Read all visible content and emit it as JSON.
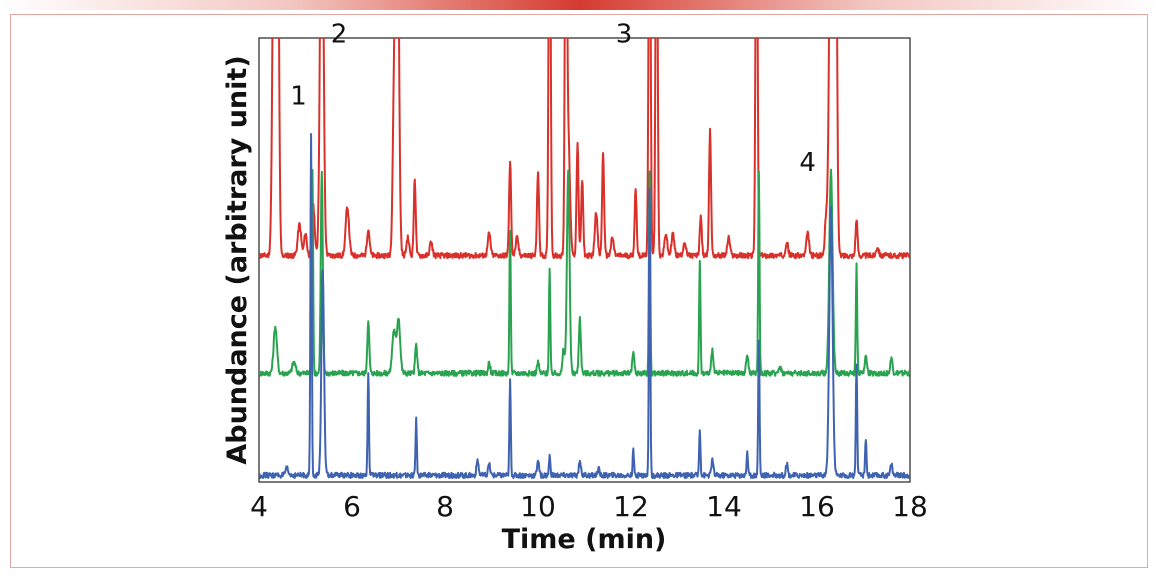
{
  "chart_data": {
    "type": "line",
    "title": "",
    "xlabel": "Time (min)",
    "ylabel": "Abundance (arbitrary unit)",
    "xlim": [
      4,
      18
    ],
    "xticks": [
      "4",
      "6",
      "8",
      "10",
      "12",
      "14",
      "16",
      "18"
    ],
    "ylim": [
      0,
      100
    ],
    "grid": false,
    "legend": "none",
    "baseline_noise": 0.6,
    "series": [
      {
        "color": "#d9302a",
        "baseline": 51,
        "peaks": [
          [
            4.33,
            150,
            0.05
          ],
          [
            4.4,
            140,
            0.04
          ],
          [
            4.87,
            58,
            0.05
          ],
          [
            5.0,
            56,
            0.04
          ],
          [
            5.17,
            62,
            0.04
          ],
          [
            5.35,
            150,
            0.05
          ],
          [
            5.9,
            62,
            0.05
          ],
          [
            6.35,
            57,
            0.04
          ],
          [
            6.9,
            80,
            0.04
          ],
          [
            6.97,
            150,
            0.05
          ],
          [
            7.2,
            55,
            0.04
          ],
          [
            7.35,
            68,
            0.03
          ],
          [
            7.7,
            54,
            0.04
          ],
          [
            8.95,
            56,
            0.04
          ],
          [
            9.4,
            72,
            0.03
          ],
          [
            9.55,
            55,
            0.04
          ],
          [
            10.0,
            70,
            0.03
          ],
          [
            10.25,
            150,
            0.03
          ],
          [
            10.6,
            150,
            0.03
          ],
          [
            10.65,
            78,
            0.05
          ],
          [
            10.85,
            76,
            0.03
          ],
          [
            10.95,
            68,
            0.03
          ],
          [
            11.25,
            61,
            0.04
          ],
          [
            11.4,
            74,
            0.03
          ],
          [
            11.6,
            55,
            0.04
          ],
          [
            12.1,
            66,
            0.03
          ],
          [
            12.4,
            150,
            0.03
          ],
          [
            12.55,
            150,
            0.03
          ],
          [
            12.75,
            56,
            0.04
          ],
          [
            12.9,
            56,
            0.04
          ],
          [
            13.15,
            54,
            0.04
          ],
          [
            13.5,
            60,
            0.03
          ],
          [
            13.7,
            79,
            0.03
          ],
          [
            14.1,
            55,
            0.04
          ],
          [
            14.7,
            150,
            0.03
          ],
          [
            15.35,
            54,
            0.04
          ],
          [
            15.8,
            56,
            0.04
          ],
          [
            16.2,
            60,
            0.04
          ],
          [
            16.3,
            150,
            0.05
          ],
          [
            16.4,
            150,
            0.04
          ],
          [
            16.85,
            59,
            0.03
          ],
          [
            17.3,
            53,
            0.04
          ]
        ]
      },
      {
        "color": "#2aa350",
        "baseline": 24.5,
        "peaks": [
          [
            4.35,
            35,
            0.05
          ],
          [
            4.75,
            27,
            0.05
          ],
          [
            5.15,
            70,
            0.02
          ],
          [
            5.35,
            70,
            0.03
          ],
          [
            6.35,
            36,
            0.03
          ],
          [
            6.9,
            34,
            0.05
          ],
          [
            7.0,
            37,
            0.05
          ],
          [
            7.38,
            31,
            0.03
          ],
          [
            8.95,
            27,
            0.03
          ],
          [
            9.4,
            57,
            0.02
          ],
          [
            10.0,
            27,
            0.03
          ],
          [
            10.25,
            48,
            0.02
          ],
          [
            10.55,
            30,
            0.03
          ],
          [
            10.65,
            70,
            0.04
          ],
          [
            10.9,
            37,
            0.03
          ],
          [
            12.05,
            29,
            0.03
          ],
          [
            12.4,
            70,
            0.02
          ],
          [
            13.48,
            50,
            0.02
          ],
          [
            13.75,
            30,
            0.03
          ],
          [
            14.5,
            29,
            0.03
          ],
          [
            14.75,
            70,
            0.02
          ],
          [
            15.2,
            26,
            0.04
          ],
          [
            16.3,
            70,
            0.05
          ],
          [
            16.85,
            49,
            0.02
          ],
          [
            17.05,
            29,
            0.03
          ],
          [
            17.6,
            28,
            0.03
          ]
        ]
      },
      {
        "color": "#3f63b0",
        "baseline": 1.5,
        "peaks": [
          [
            4.6,
            3,
            0.04
          ],
          [
            5.12,
            78,
            0.02
          ],
          [
            5.37,
            48,
            0.04
          ],
          [
            6.35,
            25,
            0.02
          ],
          [
            7.38,
            14,
            0.02
          ],
          [
            8.7,
            5,
            0.03
          ],
          [
            8.95,
            4,
            0.03
          ],
          [
            9.4,
            23,
            0.02
          ],
          [
            10.0,
            5,
            0.03
          ],
          [
            10.25,
            6,
            0.02
          ],
          [
            10.9,
            5,
            0.03
          ],
          [
            11.3,
            3,
            0.03
          ],
          [
            12.05,
            7,
            0.02
          ],
          [
            12.4,
            66,
            0.02
          ],
          [
            13.48,
            12,
            0.02
          ],
          [
            13.75,
            5,
            0.03
          ],
          [
            14.5,
            7,
            0.02
          ],
          [
            14.75,
            32,
            0.02
          ],
          [
            15.35,
            4,
            0.03
          ],
          [
            16.3,
            62,
            0.05
          ],
          [
            16.85,
            27,
            0.02
          ],
          [
            17.05,
            10,
            0.02
          ],
          [
            17.6,
            4,
            0.03
          ]
        ]
      }
    ],
    "annotations": [
      {
        "text": "1",
        "x": 4.85,
        "y": 85
      },
      {
        "text": "2",
        "x": 5.72,
        "y": 99
      },
      {
        "text": "3",
        "x": 11.85,
        "y": 99
      },
      {
        "text": "4",
        "x": 15.8,
        "y": 70
      }
    ]
  }
}
